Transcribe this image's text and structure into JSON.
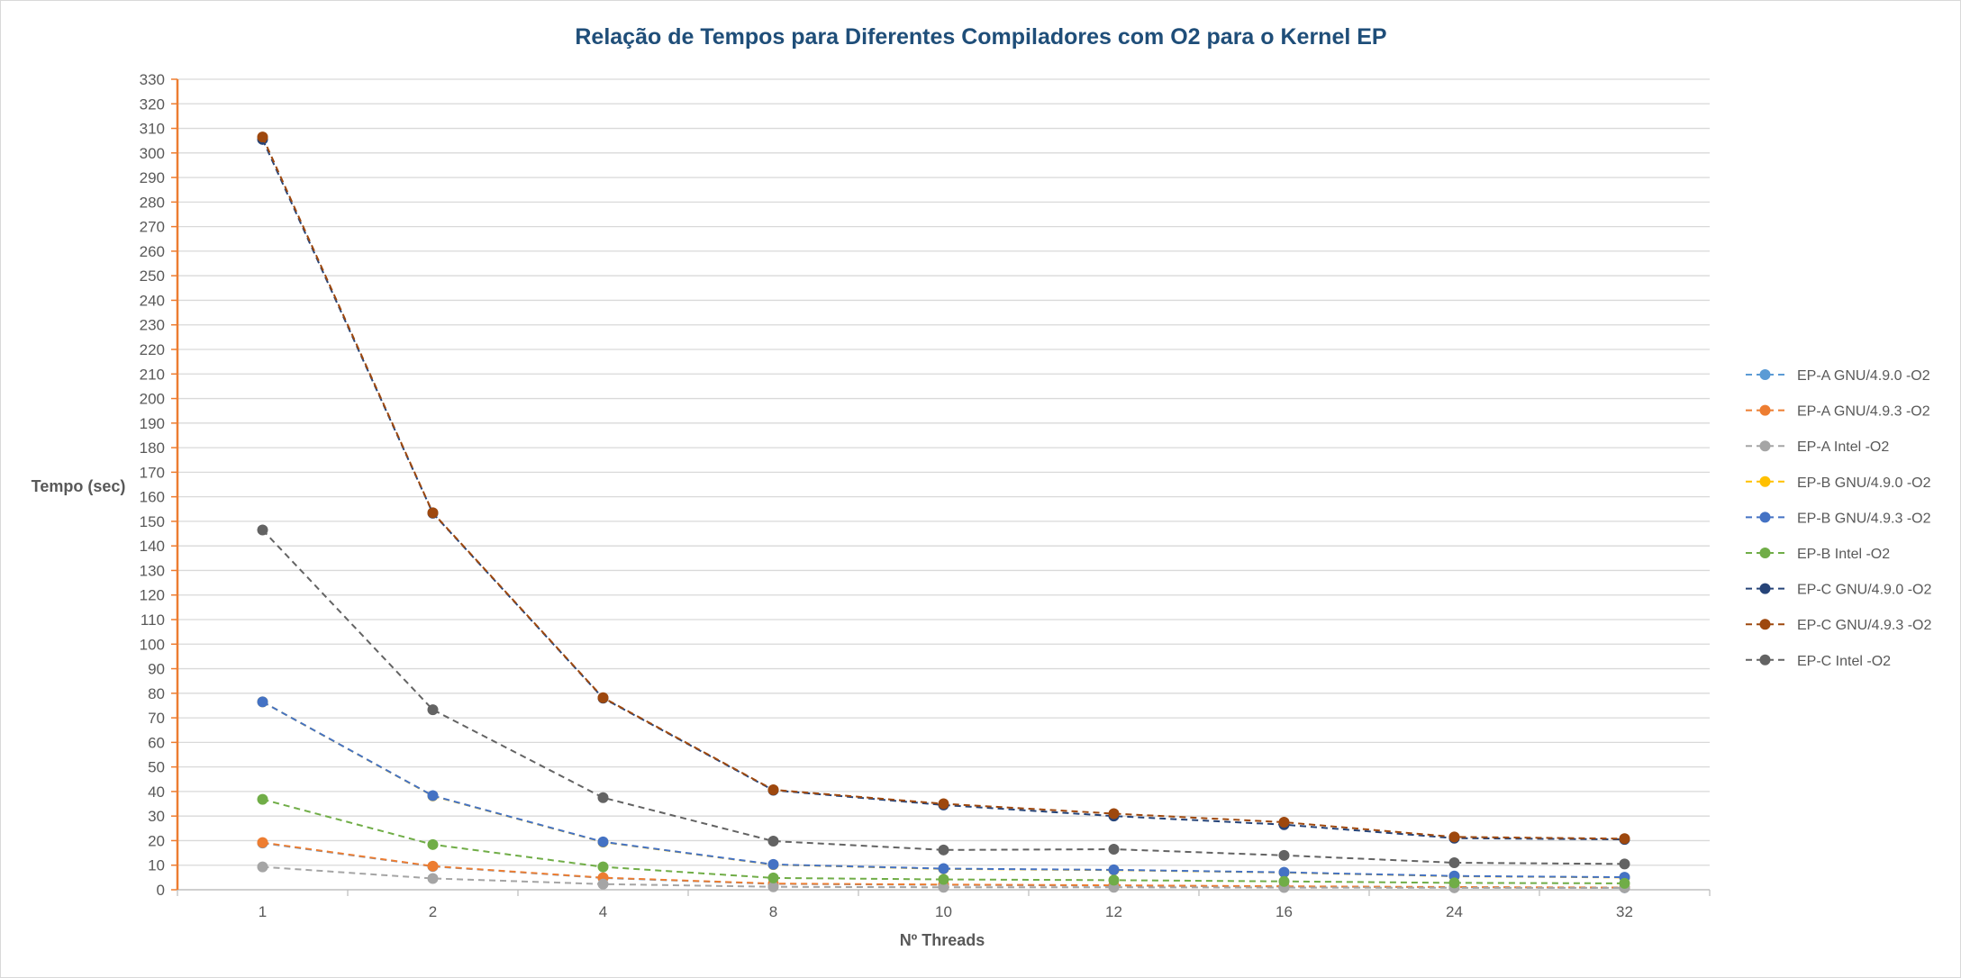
{
  "chart_data": {
    "type": "line",
    "title": "Relação de Tempos para Diferentes Compiladores com O2 para o Kernel EP",
    "xlabel": "Nº Threads",
    "ylabel": "Tempo (sec)",
    "categories": [
      "1",
      "2",
      "4",
      "8",
      "10",
      "12",
      "16",
      "24",
      "32"
    ],
    "ylim": [
      0,
      330
    ],
    "ytick_step": 10,
    "grid": true,
    "legend_position": "right",
    "line_style": "dashed",
    "series": [
      {
        "name": "EP-A GNU/4.9.0 -O2",
        "color": "#5b9bd5",
        "values": [
          19,
          9.5,
          4.8,
          2.4,
          2.0,
          1.7,
          1.3,
          1.0,
          0.8
        ]
      },
      {
        "name": "EP-A GNU/4.9.3 -O2",
        "color": "#ed7d31",
        "values": [
          19.2,
          9.6,
          4.9,
          2.5,
          2.1,
          1.8,
          1.4,
          1.1,
          0.9
        ]
      },
      {
        "name": "EP-A Intel -O2",
        "color": "#a5a5a5",
        "values": [
          9.3,
          4.6,
          2.3,
          1.2,
          1.0,
          1.0,
          0.9,
          0.8,
          0.8
        ]
      },
      {
        "name": "EP-B GNU/4.9.0 -O2",
        "color": "#ffc000",
        "values": [
          76.5,
          38.2,
          19.4,
          10.2,
          8.5,
          8.0,
          7.0,
          5.5,
          5.0
        ]
      },
      {
        "name": "EP-B GNU/4.9.3 -O2",
        "color": "#4472c4",
        "values": [
          76.5,
          38.3,
          19.5,
          10.3,
          8.6,
          8.1,
          7.1,
          5.6,
          5.1
        ]
      },
      {
        "name": "EP-B Intel -O2",
        "color": "#70ad47",
        "values": [
          36.8,
          18.4,
          9.3,
          4.8,
          4.2,
          3.9,
          3.4,
          2.8,
          2.6
        ]
      },
      {
        "name": "EP-C GNU/4.9.0 -O2",
        "color": "#264478",
        "values": [
          305.5,
          153.3,
          78.0,
          40.5,
          34.5,
          30.0,
          26.5,
          21.0,
          20.5
        ]
      },
      {
        "name": "EP-C GNU/4.9.3 -O2",
        "color": "#9e480e",
        "values": [
          306.5,
          153.5,
          78.2,
          40.7,
          35.0,
          31.0,
          27.5,
          21.5,
          20.8
        ]
      },
      {
        "name": "EP-C Intel -O2",
        "color": "#636363",
        "values": [
          146.5,
          73.3,
          37.5,
          19.8,
          16.2,
          16.5,
          14.0,
          11.0,
          10.5
        ]
      }
    ]
  },
  "colors": {
    "title": "#1f4e79",
    "grid": "#d9d9d9",
    "y_axis_line": "#ed7d31",
    "text": "#595959"
  }
}
